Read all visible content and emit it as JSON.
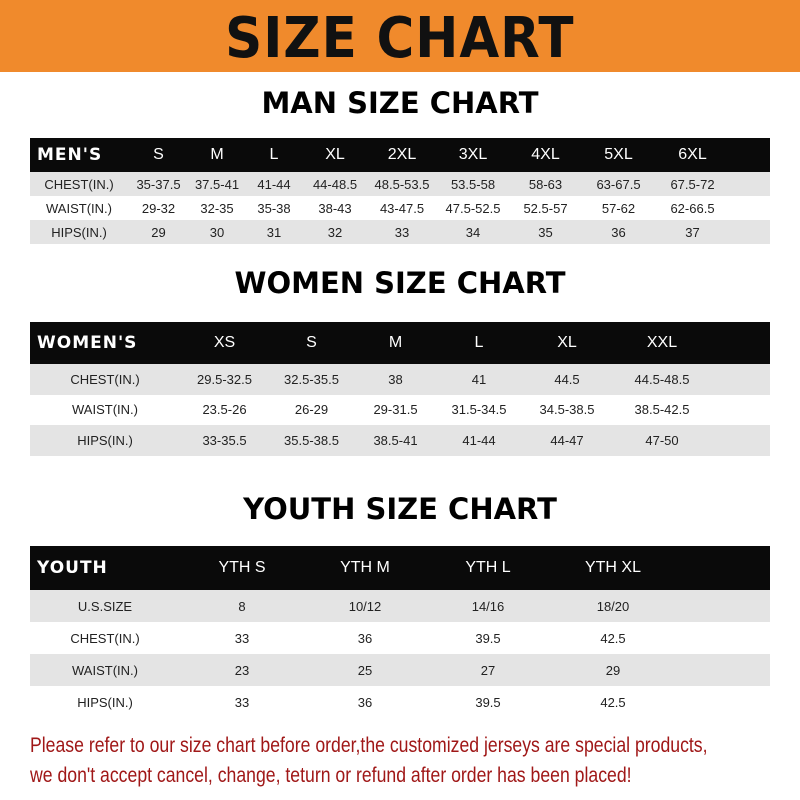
{
  "banner": {
    "title": "SIZE CHART",
    "color": "#f08a2c"
  },
  "men": {
    "title": "MAN SIZE CHART",
    "header": [
      "MEN'S",
      "S",
      "M",
      "L",
      "XL",
      "2XL",
      "3XL",
      "4XL",
      "5XL",
      "6XL"
    ],
    "rows": [
      [
        "CHEST(IN.)",
        "35-37.5",
        "37.5-41",
        "41-44",
        "44-48.5",
        "48.5-53.5",
        "53.5-58",
        "58-63",
        "63-67.5",
        "67.5-72"
      ],
      [
        "WAIST(IN.)",
        "29-32",
        "32-35",
        "35-38",
        "38-43",
        "43-47.5",
        "47.5-52.5",
        "52.5-57",
        "57-62",
        "62-66.5"
      ],
      [
        "HIPS(IN.)",
        "29",
        "30",
        "31",
        "32",
        "33",
        "34",
        "35",
        "36",
        "37"
      ]
    ]
  },
  "women": {
    "title": "WOMEN SIZE CHART",
    "header": [
      "WOMEN'S",
      "XS",
      "S",
      "M",
      "L",
      "XL",
      "XXL"
    ],
    "rows": [
      [
        "CHEST(IN.)",
        "29.5-32.5",
        "32.5-35.5",
        "38",
        "41",
        "44.5",
        "44.5-48.5"
      ],
      [
        "WAIST(IN.)",
        "23.5-26",
        "26-29",
        "29-31.5",
        "31.5-34.5",
        "34.5-38.5",
        "38.5-42.5"
      ],
      [
        "HIPS(IN.)",
        "33-35.5",
        "35.5-38.5",
        "38.5-41",
        "41-44",
        "44-47",
        "47-50"
      ]
    ]
  },
  "youth": {
    "title": "YOUTH SIZE CHART",
    "header": [
      "YOUTH",
      "YTH S",
      "YTH M",
      "YTH L",
      "YTH XL"
    ],
    "rows": [
      [
        "U.S.SIZE",
        "8",
        "10/12",
        "14/16",
        "18/20"
      ],
      [
        "CHEST(IN.)",
        "33",
        "36",
        "39.5",
        "42.5"
      ],
      [
        "WAIST(IN.)",
        "23",
        "25",
        "27",
        "29"
      ],
      [
        "HIPS(IN.)",
        "33",
        "36",
        "39.5",
        "42.5"
      ]
    ]
  },
  "notice": {
    "line1": "Please refer to our size chart before order,the customized jerseys are special products,",
    "line2": "we don't accept cancel, change, teturn or refund after order has been placed!",
    "color": "#a01818"
  }
}
